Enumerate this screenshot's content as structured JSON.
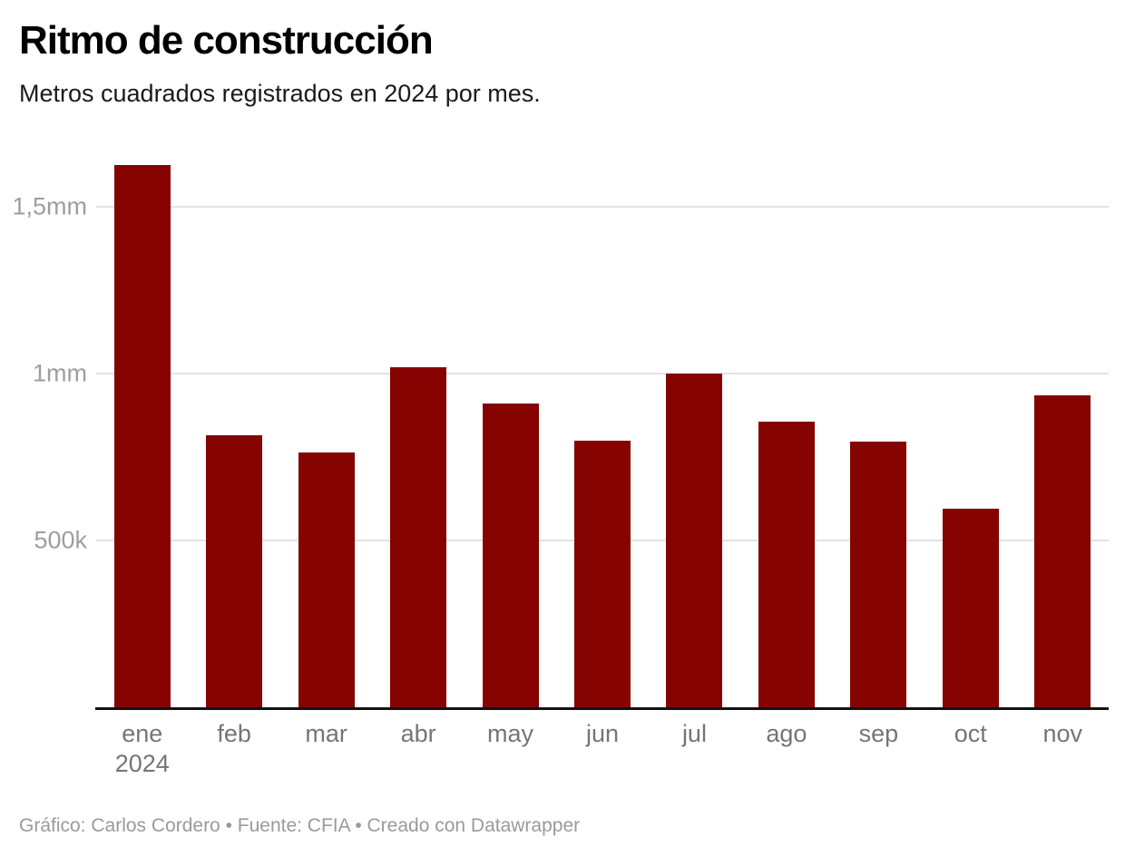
{
  "header": {
    "title": "Ritmo de construcción",
    "subtitle": "Metros cuadrados registrados en 2024 por mes."
  },
  "chart_data": {
    "type": "bar",
    "title": "Ritmo de construcción",
    "subtitle": "Metros cuadrados registrados en 2024 por mes.",
    "categories": [
      "ene 2024",
      "feb",
      "mar",
      "abr",
      "may",
      "jun",
      "jul",
      "ago",
      "sep",
      "oct",
      "nov"
    ],
    "values": [
      1625000,
      815000,
      765000,
      1020000,
      910000,
      800000,
      1000000,
      855000,
      795000,
      595000,
      935000
    ],
    "xlabel": "",
    "ylabel": "",
    "ylim": [
      0,
      1685000
    ],
    "yticks": [
      {
        "value": 500000,
        "label": "500k"
      },
      {
        "value": 1000000,
        "label": "1mm"
      },
      {
        "value": 1500000,
        "label": "1,5mm"
      }
    ],
    "grid": true,
    "legend": false
  },
  "footer": {
    "byline": "Gráfico: Carlos Cordero • Fuente: CFIA • Creado con Datawrapper"
  },
  "colors": {
    "bar": "#850300",
    "grid_line": "#e3e3e3",
    "axis_line": "#121212",
    "y_tick_label": "#9e9e9e",
    "x_tick_label": "#757575",
    "title": "#000000",
    "subtitle": "#1a1a1a",
    "footer_text": "#9a9a9a",
    "background": "#ffffff"
  }
}
